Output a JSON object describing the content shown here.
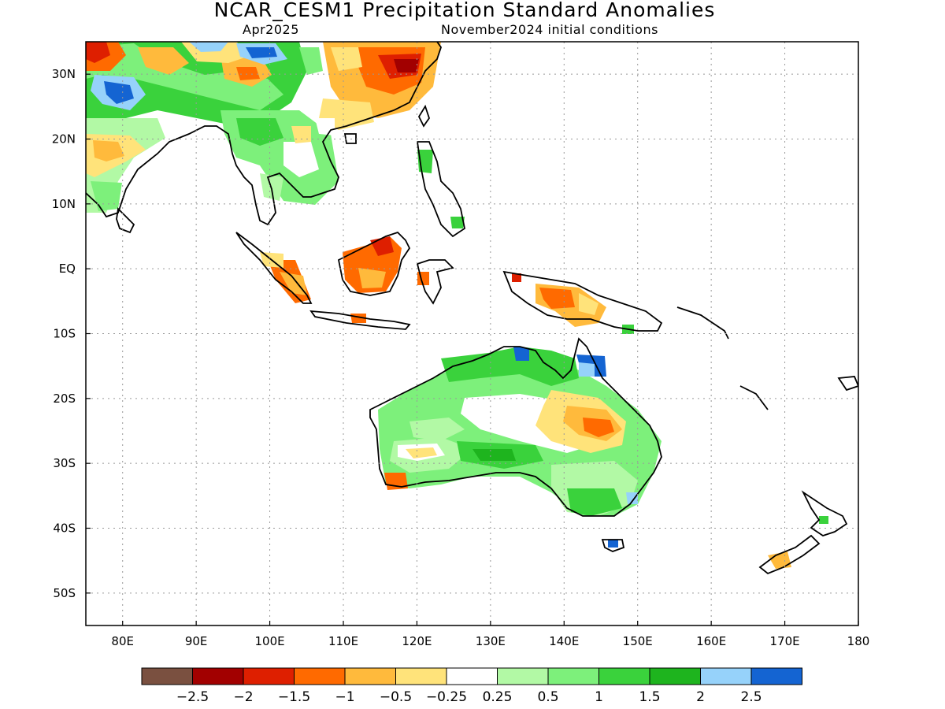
{
  "header": {
    "title": "NCAR_CESM1 Precipitation Standard Anomalies",
    "valid_month": "Apr2025",
    "init_conditions": "November2024 initial conditions"
  },
  "axes": {
    "lat_labels": [
      "30N",
      "20N",
      "10N",
      "EQ",
      "10S",
      "20S",
      "30S",
      "40S",
      "50S"
    ],
    "lat_values": [
      30,
      20,
      10,
      0,
      -10,
      -20,
      -30,
      -40,
      -50
    ],
    "lon_labels": [
      "80E",
      "90E",
      "100E",
      "110E",
      "120E",
      "130E",
      "140E",
      "150E",
      "160E",
      "170E",
      "180"
    ],
    "lon_values": [
      80,
      90,
      100,
      110,
      120,
      130,
      140,
      150,
      160,
      170,
      180
    ],
    "lon_range": [
      75,
      180
    ],
    "lat_range": [
      -55,
      35
    ],
    "grid": "dotted"
  },
  "colorbar": {
    "colors": [
      "#7a5040",
      "#a20000",
      "#de1f00",
      "#ff6a00",
      "#ffba3c",
      "#ffe37a",
      "#ffffff",
      "#b2f9a5",
      "#7df07b",
      "#3ad23c",
      "#1eb41e",
      "#96d2fa",
      "#1464d2"
    ],
    "labels": [
      "−2.5",
      "−2",
      "−1.5",
      "−1",
      "−0.5",
      "−0.25",
      "0.25",
      "0.5",
      "1",
      "1.5",
      "2",
      "2.5"
    ]
  }
}
